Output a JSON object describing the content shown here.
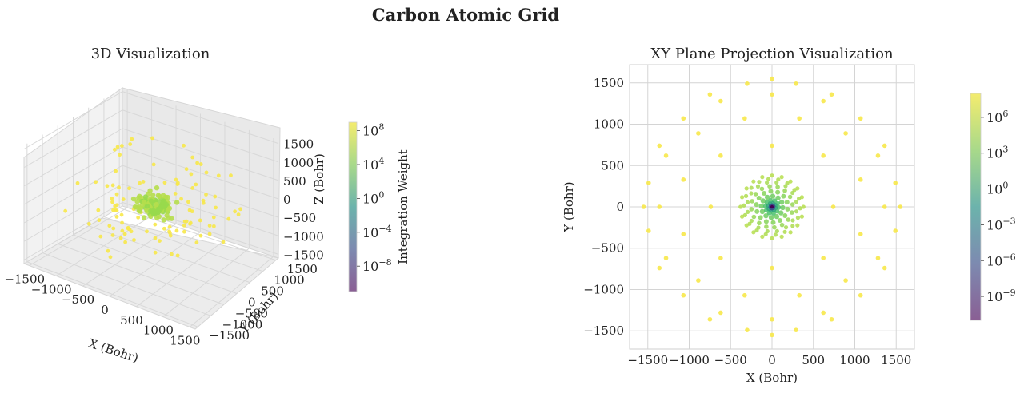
{
  "figure": {
    "title": "Carbon Atomic Grid"
  },
  "colors": {
    "viridis": [
      "#440154",
      "#3b528b",
      "#21918c",
      "#5ec962",
      "#fde725"
    ],
    "grid": "#d0d0d0",
    "pane": "#f2f2f2"
  },
  "chart_data": [
    {
      "type": "scatter",
      "title": "3D Visualization",
      "xlabel": "X (Bohr)",
      "ylabel": "Y (Bohr)",
      "zlabel": "Z (Bohr)",
      "xlim": [
        -1600,
        1600
      ],
      "ylim": [
        -1600,
        1600
      ],
      "zlim": [
        -1600,
        1600
      ],
      "xticks": [
        "−1500",
        "−1000",
        "−500",
        "0",
        "500",
        "1000",
        "1500"
      ],
      "yticks": [
        "−1500",
        "−1000",
        "−500",
        "0",
        "500",
        "1000",
        "1500"
      ],
      "zticks": [
        "−1500",
        "−1000",
        "−500",
        "0",
        "500",
        "1000",
        "1500"
      ],
      "grid": true,
      "point_color_by": "Integration Weight",
      "colorbar": {
        "label": "Integration Weight",
        "scale": "log",
        "range_exp": [
          -11,
          9
        ],
        "ticks": [
          {
            "base": "10",
            "exp": "8"
          },
          {
            "base": "10",
            "exp": "4"
          },
          {
            "base": "10",
            "exp": "0"
          },
          {
            "base": "10",
            "exp": "−4"
          },
          {
            "base": "10",
            "exp": "−8"
          }
        ]
      }
    },
    {
      "type": "scatter",
      "title": "XY Plane Projection Visualization",
      "xlabel": "X (Bohr)",
      "ylabel": "Y (Bohr)",
      "xlim": [
        -1720,
        1720
      ],
      "ylim": [
        -1720,
        1720
      ],
      "xticks": [
        "−1500",
        "−1000",
        "−500",
        "0",
        "500",
        "1000",
        "1500"
      ],
      "yticks": [
        "−1500",
        "−1000",
        "−500",
        "0",
        "500",
        "1000",
        "1500"
      ],
      "grid": true,
      "outer_points": [
        [
          0,
          1550
        ],
        [
          0,
          1360
        ],
        [
          0,
          740
        ],
        [
          0,
          -740
        ],
        [
          0,
          -1360
        ],
        [
          0,
          -1550
        ],
        [
          1550,
          0
        ],
        [
          1360,
          0
        ],
        [
          740,
          0
        ],
        [
          -740,
          0
        ],
        [
          -1360,
          0
        ],
        [
          -1550,
          0
        ],
        [
          -300,
          1490
        ],
        [
          290,
          1490
        ],
        [
          -300,
          -1490
        ],
        [
          290,
          -1490
        ],
        [
          1490,
          290
        ],
        [
          1490,
          -290
        ],
        [
          -1490,
          290
        ],
        [
          -1490,
          -290
        ],
        [
          -750,
          1360
        ],
        [
          720,
          1360
        ],
        [
          -750,
          -1360
        ],
        [
          720,
          -1360
        ],
        [
          1360,
          740
        ],
        [
          1360,
          -740
        ],
        [
          -1360,
          740
        ],
        [
          -1360,
          -740
        ],
        [
          -1070,
          1070
        ],
        [
          1070,
          1070
        ],
        [
          -1070,
          -1070
        ],
        [
          1070,
          -1070
        ],
        [
          -620,
          1280
        ],
        [
          620,
          1280
        ],
        [
          -620,
          -1280
        ],
        [
          620,
          -1280
        ],
        [
          1280,
          620
        ],
        [
          1280,
          -620
        ],
        [
          -1280,
          620
        ],
        [
          -1280,
          -620
        ],
        [
          -330,
          1070
        ],
        [
          330,
          1070
        ],
        [
          -330,
          -1070
        ],
        [
          330,
          -1070
        ],
        [
          1070,
          330
        ],
        [
          1070,
          -330
        ],
        [
          -1070,
          330
        ],
        [
          -1070,
          -330
        ],
        [
          -890,
          890
        ],
        [
          890,
          890
        ],
        [
          -890,
          -890
        ],
        [
          890,
          -890
        ],
        [
          -620,
          620
        ],
        [
          620,
          620
        ],
        [
          -620,
          -620
        ],
        [
          620,
          -620
        ]
      ],
      "colorbar": {
        "scale": "log",
        "range_exp": [
          -11,
          8
        ],
        "ticks": [
          {
            "base": "10",
            "exp": "6"
          },
          {
            "base": "10",
            "exp": "3"
          },
          {
            "base": "10",
            "exp": "0"
          },
          {
            "base": "10",
            "exp": "−3"
          },
          {
            "base": "10",
            "exp": "−6"
          },
          {
            "base": "10",
            "exp": "−9"
          }
        ]
      }
    }
  ]
}
